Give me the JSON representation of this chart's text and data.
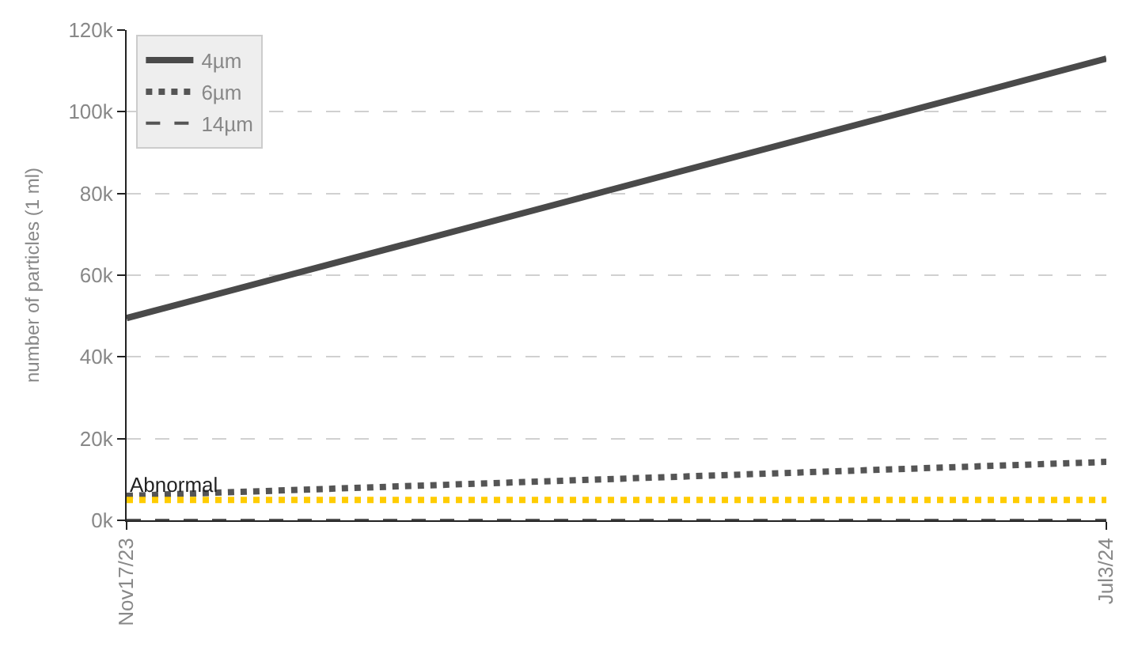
{
  "chart_data": {
    "type": "line",
    "ylabel": "number of particles (1 ml)",
    "x": [
      "2023-11-17",
      "2024-07-03"
    ],
    "xlim": [
      "2023-11-17",
      "2024-07-03"
    ],
    "xticks": [
      {
        "value": "2023-11-17",
        "label": "Nov17/23"
      },
      {
        "value": "2024-07-03",
        "label": "Jul3/24"
      }
    ],
    "ylim": [
      0,
      120000
    ],
    "yticks": [
      {
        "value": 0,
        "label": "0k"
      },
      {
        "value": 20000,
        "label": "20k"
      },
      {
        "value": 40000,
        "label": "40k"
      },
      {
        "value": 60000,
        "label": "60k"
      },
      {
        "value": 80000,
        "label": "80k"
      },
      {
        "value": 100000,
        "label": "100k"
      },
      {
        "value": 120000,
        "label": "120k"
      }
    ],
    "series": [
      {
        "name": "4µm",
        "color": "#4a4a4a",
        "values": [
          49500,
          113000
        ],
        "line_style": "solid"
      },
      {
        "name": "6µm",
        "color": "#555555",
        "values": [
          6000,
          14300
        ],
        "line_style": "dotted"
      },
      {
        "name": "14µm",
        "color": "#555555",
        "values": [
          0,
          0
        ],
        "line_style": "dashed"
      }
    ],
    "ref_lines": [
      {
        "axis": "y",
        "value": 5000,
        "label": "Abnormal",
        "color": "#ffcc00",
        "line_style": "dotted"
      }
    ],
    "grid": true,
    "legend": "top left",
    "marker": "none"
  }
}
